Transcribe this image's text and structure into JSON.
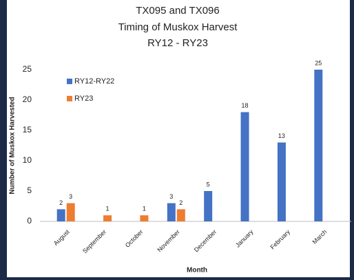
{
  "chart_data": {
    "type": "bar",
    "title": [
      "TX095 and TX096",
      "Timing of Muskox Harvest",
      "RY12 - RY23"
    ],
    "y_label": "Number of Muskox Harvested",
    "x_label": "Month",
    "categories": [
      "August",
      "September",
      "October",
      "November",
      "December",
      "January",
      "February",
      "March"
    ],
    "series": [
      {
        "name": "RY12-RY22",
        "color": "#4472c4",
        "values": [
          2,
          null,
          null,
          3,
          5,
          18,
          13,
          25
        ]
      },
      {
        "name": "RY23",
        "color": "#ed7d31",
        "values": [
          3,
          1,
          1,
          2,
          null,
          null,
          null,
          null
        ]
      }
    ],
    "ylim": [
      0,
      25
    ],
    "yticks": [
      0,
      5,
      10,
      15,
      20,
      25
    ],
    "grid": false,
    "legend": "upper left"
  }
}
